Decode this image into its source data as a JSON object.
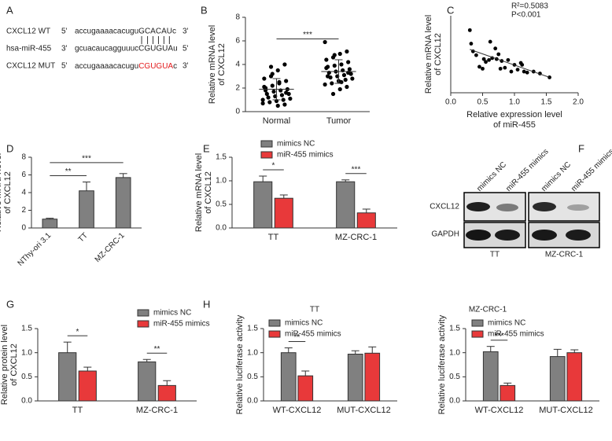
{
  "sequence_panel": {
    "panel": "A",
    "rows": [
      {
        "name": "CXCL12 WT",
        "left_end": "5'",
        "sequence": "accugaaaacacuguGCACAUc",
        "right_end": "3'"
      },
      {
        "name": "hsa-miR-455",
        "left_end": "3'",
        "sequence": "gcuacaucagguuucCGUGUAu",
        "right_end": "5'"
      },
      {
        "name": "CXCL12 MUT",
        "left_end": "5'",
        "sequence": "accugaaaacacugu",
        "mutation": "CGUGUA",
        "sequence_end": "c",
        "right_end": "3'"
      }
    ]
  },
  "blot_panel": {
    "panel": "F",
    "lanes": [
      "mimics NC",
      "miR-455 mimics",
      "mimics NC",
      "miR-455 mimics"
    ],
    "proteins": [
      "CXCL12",
      "GAPDH"
    ],
    "groups": [
      "TT",
      "MZ-CRC-1"
    ]
  },
  "chart_data": [
    {
      "type": "strip",
      "panel": "B",
      "categories": [
        "Normal",
        "Tumor"
      ],
      "ylabel": [
        "Relative mRNA level",
        "of CXCL12"
      ],
      "ylim": [
        0,
        8
      ],
      "yticks": [
        0,
        2,
        4,
        6,
        8
      ],
      "values": [
        [
          1.0,
          4.0,
          3.5,
          3.8,
          2.8,
          2.6,
          2.5,
          2.2,
          2.0,
          1.9,
          1.8,
          1.7,
          1.5,
          1.5,
          1.4,
          1.3,
          1.2,
          1.1,
          1.0,
          0.9,
          0.8,
          0.7,
          0.6,
          0.5,
          3.0,
          2.1,
          1.6,
          2.4,
          3.2,
          1.8
        ],
        [
          5.9,
          5.1,
          4.9,
          4.6,
          4.4,
          4.2,
          4.0,
          3.9,
          3.8,
          3.6,
          3.5,
          3.4,
          3.3,
          3.2,
          3.1,
          3.0,
          2.9,
          2.8,
          2.7,
          2.6,
          2.4,
          2.3,
          2.1,
          1.9,
          1.5,
          3.7,
          3.3,
          2.5,
          4.8,
          3.0
        ]
      ],
      "means": [
        1.9,
        3.4
      ],
      "sds": [
        0.9,
        1.0
      ],
      "color": "#000000",
      "significance": "***"
    },
    {
      "type": "scatter",
      "panel": "C",
      "xlabel": [
        "Relative expression level",
        "of miR-455"
      ],
      "ylabel": [
        "Relative mRNA level",
        "of CXCL12"
      ],
      "xlim": [
        0,
        2
      ],
      "xticks": [
        {
          "value": 0,
          "label": "0.0"
        },
        0.5,
        {
          "value": 1,
          "label": "1.0"
        },
        1.5,
        {
          "value": 2,
          "label": "2.0"
        }
      ],
      "ylim": [
        0,
        8
      ],
      "x": [
        0.3,
        0.32,
        0.35,
        0.4,
        0.45,
        0.5,
        0.52,
        0.55,
        0.6,
        0.62,
        0.65,
        0.7,
        0.72,
        0.75,
        0.8,
        0.85,
        0.9,
        0.95,
        1.0,
        1.05,
        1.1,
        1.15,
        1.2,
        1.3,
        1.4,
        1.55,
        0.78,
        1.12
      ],
      "y": [
        6.5,
        5.1,
        4.3,
        3.9,
        2.7,
        2.5,
        3.5,
        3.2,
        3.4,
        5.3,
        3.6,
        4.6,
        3.5,
        4.0,
        3.3,
        2.6,
        3.4,
        2.2,
        2.9,
        2.4,
        3.1,
        2.2,
        2.1,
        2.2,
        2.0,
        1.6,
        2.5,
        2.9
      ],
      "fit": {
        "x": [
          0.3,
          1.55
        ],
        "y": [
          4.5,
          1.6
        ]
      },
      "annotations": [
        "R²=0.5083",
        "P<0.001"
      ],
      "color": "#000000"
    },
    {
      "type": "bar",
      "panel": "D",
      "categories": [
        "NThy-ori 3.1",
        "TT",
        "MZ-CRC-1"
      ],
      "values": [
        1.0,
        4.2,
        5.7
      ],
      "errors": [
        0.1,
        1.0,
        0.45
      ],
      "color": "#808080",
      "ylabel": [
        "Relative mRNA level",
        "of CXCL12"
      ],
      "ylim": [
        0,
        8
      ],
      "yticks": [
        0,
        2,
        4,
        6,
        8
      ],
      "significance": [
        "**",
        "***"
      ]
    },
    {
      "type": "grouped_bar",
      "panel": "E",
      "categories": [
        "TT",
        "MZ-CRC-1"
      ],
      "series": [
        {
          "name": "mimics NC",
          "color": "#808080",
          "values": [
            0.98,
            0.98
          ],
          "errors": [
            0.12,
            0.04
          ]
        },
        {
          "name": "miR-455 mimics",
          "color": "#e8393a",
          "values": [
            0.63,
            0.32
          ],
          "errors": [
            0.07,
            0.08
          ]
        }
      ],
      "ylabel": [
        "Relative mRNA level",
        "of CXCL12"
      ],
      "ylim": [
        0,
        1.5
      ],
      "yticks": [
        {
          "value": 0,
          "label": "0.0"
        },
        0.5,
        {
          "value": 1,
          "label": "1.0"
        },
        1.5
      ],
      "significance": [
        "*",
        "***"
      ]
    },
    {
      "type": "grouped_bar",
      "panel": "G",
      "categories": [
        "TT",
        "MZ-CRC-1"
      ],
      "series": [
        {
          "name": "mimics NC",
          "color": "#808080",
          "values": [
            1.0,
            0.81
          ],
          "errors": [
            0.22,
            0.05
          ]
        },
        {
          "name": "miR-455 mimics",
          "color": "#e8393a",
          "values": [
            0.62,
            0.32
          ],
          "errors": [
            0.08,
            0.1
          ]
        }
      ],
      "ylabel": [
        "Relative protein level",
        "of CXCL12"
      ],
      "ylim": [
        0,
        1.5
      ],
      "yticks": [
        {
          "value": 0,
          "label": "0.0"
        },
        0.5,
        {
          "value": 1,
          "label": "1.0"
        },
        1.5
      ],
      "significance": [
        "*",
        "**"
      ]
    },
    {
      "type": "grouped_bar",
      "panel": "H",
      "title": "TT",
      "categories": [
        "WT-CXCL12",
        "MUT-CXCL12"
      ],
      "series": [
        {
          "name": "mimics NC",
          "color": "#808080",
          "values": [
            1.0,
            0.97
          ],
          "errors": [
            0.1,
            0.07
          ]
        },
        {
          "name": "miR-455 mimics",
          "color": "#e8393a",
          "values": [
            0.52,
            0.99
          ],
          "errors": [
            0.1,
            0.13
          ]
        }
      ],
      "ylabel": [
        "Relative luciferase activity"
      ],
      "ylim": [
        0,
        1.5
      ],
      "yticks": [
        {
          "value": 0,
          "label": "0.0"
        },
        0.5,
        {
          "value": 1,
          "label": "1.0"
        },
        1.5
      ],
      "significance": [
        "**",
        null
      ]
    },
    {
      "type": "grouped_bar",
      "title": "MZ-CRC-1",
      "categories": [
        "WT-CXCL12",
        "MUT-CXCL12"
      ],
      "series": [
        {
          "name": "mimics NC",
          "color": "#808080",
          "values": [
            1.02,
            0.92
          ],
          "errors": [
            0.11,
            0.15
          ]
        },
        {
          "name": "miR-455 mimics",
          "color": "#e8393a",
          "values": [
            0.32,
            1.0
          ],
          "errors": [
            0.05,
            0.06
          ]
        }
      ],
      "ylabel": [
        "Relative luciferase activity"
      ],
      "ylim": [
        0,
        1.5
      ],
      "yticks": [
        {
          "value": 0,
          "label": "0.0"
        },
        0.5,
        {
          "value": 1,
          "label": "1.0"
        },
        1.5
      ],
      "significance": [
        "***",
        null
      ]
    }
  ]
}
